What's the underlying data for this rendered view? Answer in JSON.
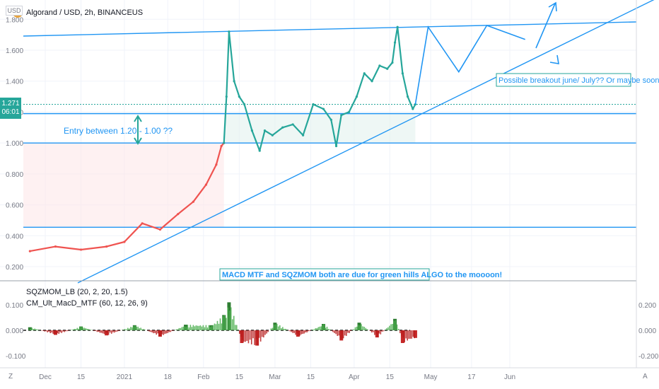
{
  "header": {
    "title": "Algorand / USD, 2h, BINANCEUS",
    "currency_badge": "USD",
    "price_badge_value": "1.271",
    "price_badge_timer": "06:01"
  },
  "annotations": {
    "entry": "Entry between 1.20 - 1.00 ??",
    "breakout": "Possible breakout june/ July?? Or maybe sooner!",
    "indicator_note": "MACD MTF and SQZMOM both are due for green hills ALGO to the moooon!"
  },
  "bottom_bar": {
    "left_icon": "Z",
    "right_icon": "A"
  },
  "colors": {
    "up": "#26a69a",
    "down": "#ef5350",
    "trendline": "#2196f3",
    "annotation_border": "#26a69a"
  },
  "chart_data": [
    {
      "type": "line",
      "title": "Algorand / USD, 2h, BINANCEUS",
      "xlabel": "",
      "ylabel": "",
      "x_ticks": [
        "Dec",
        "15",
        "2021",
        "18",
        "Feb",
        "15",
        "Mar",
        "15",
        "Apr",
        "15",
        "May",
        "17",
        "Jun"
      ],
      "y_ticks": [
        0.2,
        0.4,
        0.6,
        0.8,
        1.0,
        1.2,
        1.4,
        1.6,
        1.8
      ],
      "y_tick_labels": [
        "0.200",
        "0.400",
        "0.600",
        "0.800",
        "1.000",
        "1.200",
        "1.400",
        "1.600",
        "1.800"
      ],
      "ylim": [
        0.14,
        1.9
      ],
      "series": [
        {
          "color": "#ef5350",
          "x": [
            "2020-11-25",
            "2020-12-05",
            "2020-12-15",
            "2020-12-25",
            "2021-01-01",
            "2021-01-08",
            "2021-01-15",
            "2021-01-22",
            "2021-01-28",
            "2021-02-02",
            "2021-02-06",
            "2021-02-08",
            "2021-02-09"
          ],
          "y": [
            0.3,
            0.33,
            0.31,
            0.33,
            0.36,
            0.48,
            0.44,
            0.54,
            0.62,
            0.73,
            0.86,
            0.98,
            1.0
          ]
        },
        {
          "color": "#26a69a",
          "x": [
            "2021-02-09",
            "2021-02-10",
            "2021-02-11",
            "2021-02-13",
            "2021-02-15",
            "2021-02-17",
            "2021-02-20",
            "2021-02-23",
            "2021-02-25",
            "2021-02-28",
            "2021-03-04",
            "2021-03-08",
            "2021-03-12",
            "2021-03-16",
            "2021-03-20",
            "2021-03-23",
            "2021-03-25",
            "2021-03-27",
            "2021-03-30",
            "2021-04-02",
            "2021-04-05",
            "2021-04-08",
            "2021-04-11",
            "2021-04-14",
            "2021-04-16",
            "2021-04-17",
            "2021-04-18",
            "2021-04-20",
            "2021-04-22",
            "2021-04-24",
            "2021-04-25"
          ],
          "y": [
            1.0,
            1.3,
            1.72,
            1.4,
            1.3,
            1.25,
            1.08,
            0.95,
            1.08,
            1.05,
            1.1,
            1.12,
            1.05,
            1.25,
            1.22,
            1.15,
            0.98,
            1.18,
            1.2,
            1.3,
            1.45,
            1.4,
            1.5,
            1.48,
            1.52,
            1.65,
            1.75,
            1.45,
            1.3,
            1.22,
            1.25
          ]
        }
      ],
      "horizontal_lines": [
        1.19,
        1.0,
        0.455
      ],
      "projection": {
        "x": [
          "2021-04-25",
          "2021-04-30",
          "2021-05-12",
          "2021-05-23",
          "2021-06-07"
        ],
        "y": [
          1.25,
          1.75,
          1.46,
          1.76,
          1.67
        ]
      }
    },
    {
      "type": "bar",
      "title": "",
      "xlabel": "",
      "ylabel": "",
      "legend": [
        "SQZMOM_LB (20, 2, 20, 1.5)",
        "CM_Ult_MacD_MTF (60, 12, 26, 9)"
      ],
      "left_ticks": [
        "0.100",
        "0.000",
        "-0.100"
      ],
      "right_ticks": [
        "0.200",
        "0.000",
        "-0.200"
      ],
      "ylim": [
        -0.12,
        0.12
      ],
      "x": [
        "2020-11-25",
        "2020-12-05",
        "2020-12-15",
        "2020-12-25",
        "2021-01-05",
        "2021-01-15",
        "2021-01-25",
        "2021-02-04",
        "2021-02-09",
        "2021-02-11",
        "2021-02-16",
        "2021-02-22",
        "2021-03-01",
        "2021-03-10",
        "2021-03-20",
        "2021-03-27",
        "2021-04-03",
        "2021-04-10",
        "2021-04-17",
        "2021-04-20",
        "2021-04-25"
      ],
      "values": [
        0.012,
        -0.018,
        0.015,
        -0.02,
        0.02,
        -0.025,
        0.022,
        0.02,
        0.06,
        0.11,
        -0.05,
        -0.06,
        0.03,
        -0.025,
        0.025,
        -0.04,
        0.03,
        -0.028,
        0.045,
        -0.05,
        -0.03
      ]
    }
  ]
}
